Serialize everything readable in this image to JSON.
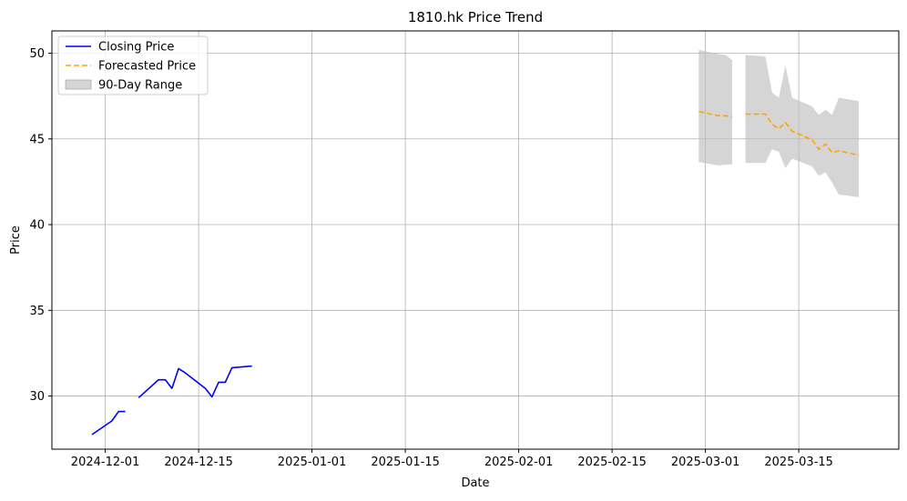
{
  "chart_data": {
    "type": "line",
    "title": "1810.hk Price Trend",
    "xlabel": "Date",
    "ylabel": "Price",
    "grid": true,
    "legend_position": "top-left",
    "xlim": [
      "2024-11-23",
      "2025-03-30"
    ],
    "ylim": [
      26.9,
      51.3
    ],
    "x_ticks": [
      "2024-12-01",
      "2024-12-15",
      "2025-01-01",
      "2025-01-15",
      "2025-02-01",
      "2025-02-15",
      "2025-03-01",
      "2025-03-15"
    ],
    "y_ticks": [
      30,
      35,
      40,
      45,
      50
    ],
    "colors": {
      "closing": "#0000ff",
      "forecast": "#ffa500",
      "range_fill": "#bfbfbf",
      "grid": "#b0b0b0"
    },
    "series": [
      {
        "name": "Closing Price",
        "style": "solid",
        "segments": [
          [
            {
              "x": "2024-11-29",
              "y": 27.75
            },
            {
              "x": "2024-12-02",
              "y": 28.55
            },
            {
              "x": "2024-12-03",
              "y": 29.1
            },
            {
              "x": "2024-12-04",
              "y": 29.1
            }
          ],
          [
            {
              "x": "2024-12-06",
              "y": 29.9
            },
            {
              "x": "2024-12-09",
              "y": 30.95
            },
            {
              "x": "2024-12-10",
              "y": 30.95
            },
            {
              "x": "2024-12-11",
              "y": 30.45
            },
            {
              "x": "2024-12-12",
              "y": 31.6
            },
            {
              "x": "2024-12-13",
              "y": 31.35
            },
            {
              "x": "2024-12-16",
              "y": 30.45
            },
            {
              "x": "2024-12-17",
              "y": 29.95
            },
            {
              "x": "2024-12-18",
              "y": 30.8
            },
            {
              "x": "2024-12-19",
              "y": 30.8
            },
            {
              "x": "2024-12-20",
              "y": 31.65
            },
            {
              "x": "2024-12-23",
              "y": 31.75
            }
          ]
        ]
      },
      {
        "name": "Forecasted Price",
        "style": "dashed",
        "segments": [
          [
            {
              "x": "2025-02-28",
              "y": 46.6
            },
            {
              "x": "2025-03-03",
              "y": 46.35
            },
            {
              "x": "2025-03-04",
              "y": 46.35
            },
            {
              "x": "2025-03-05",
              "y": 46.3
            }
          ],
          [
            {
              "x": "2025-03-07",
              "y": 46.45
            },
            {
              "x": "2025-03-10",
              "y": 46.45
            },
            {
              "x": "2025-03-11",
              "y": 45.85
            },
            {
              "x": "2025-03-12",
              "y": 45.6
            },
            {
              "x": "2025-03-13",
              "y": 45.95
            },
            {
              "x": "2025-03-14",
              "y": 45.45
            },
            {
              "x": "2025-03-17",
              "y": 44.95
            },
            {
              "x": "2025-03-18",
              "y": 44.4
            },
            {
              "x": "2025-03-19",
              "y": 44.7
            },
            {
              "x": "2025-03-20",
              "y": 44.2
            },
            {
              "x": "2025-03-21",
              "y": 44.3
            },
            {
              "x": "2025-03-24",
              "y": 44.05
            }
          ]
        ]
      }
    ],
    "range": {
      "name": "90-Day Range",
      "segments": [
        [
          {
            "x": "2025-02-28",
            "low": 43.65,
            "high": 50.2
          },
          {
            "x": "2025-03-03",
            "low": 43.45,
            "high": 49.95
          },
          {
            "x": "2025-03-04",
            "low": 43.5,
            "high": 49.9
          },
          {
            "x": "2025-03-05",
            "low": 43.5,
            "high": 49.6
          }
        ],
        [
          {
            "x": "2025-03-07",
            "low": 43.6,
            "high": 49.9
          },
          {
            "x": "2025-03-10",
            "low": 43.6,
            "high": 49.8
          },
          {
            "x": "2025-03-11",
            "low": 44.4,
            "high": 47.7
          },
          {
            "x": "2025-03-12",
            "low": 44.25,
            "high": 47.4
          },
          {
            "x": "2025-03-13",
            "low": 43.3,
            "high": 49.3
          },
          {
            "x": "2025-03-14",
            "low": 43.85,
            "high": 47.4
          },
          {
            "x": "2025-03-17",
            "low": 43.4,
            "high": 46.9
          },
          {
            "x": "2025-03-18",
            "low": 42.85,
            "high": 46.4
          },
          {
            "x": "2025-03-19",
            "low": 43.05,
            "high": 46.7
          },
          {
            "x": "2025-03-20",
            "low": 42.45,
            "high": 46.4
          },
          {
            "x": "2025-03-21",
            "low": 41.75,
            "high": 47.4
          },
          {
            "x": "2025-03-24",
            "low": 41.6,
            "high": 47.2
          }
        ]
      ]
    }
  }
}
